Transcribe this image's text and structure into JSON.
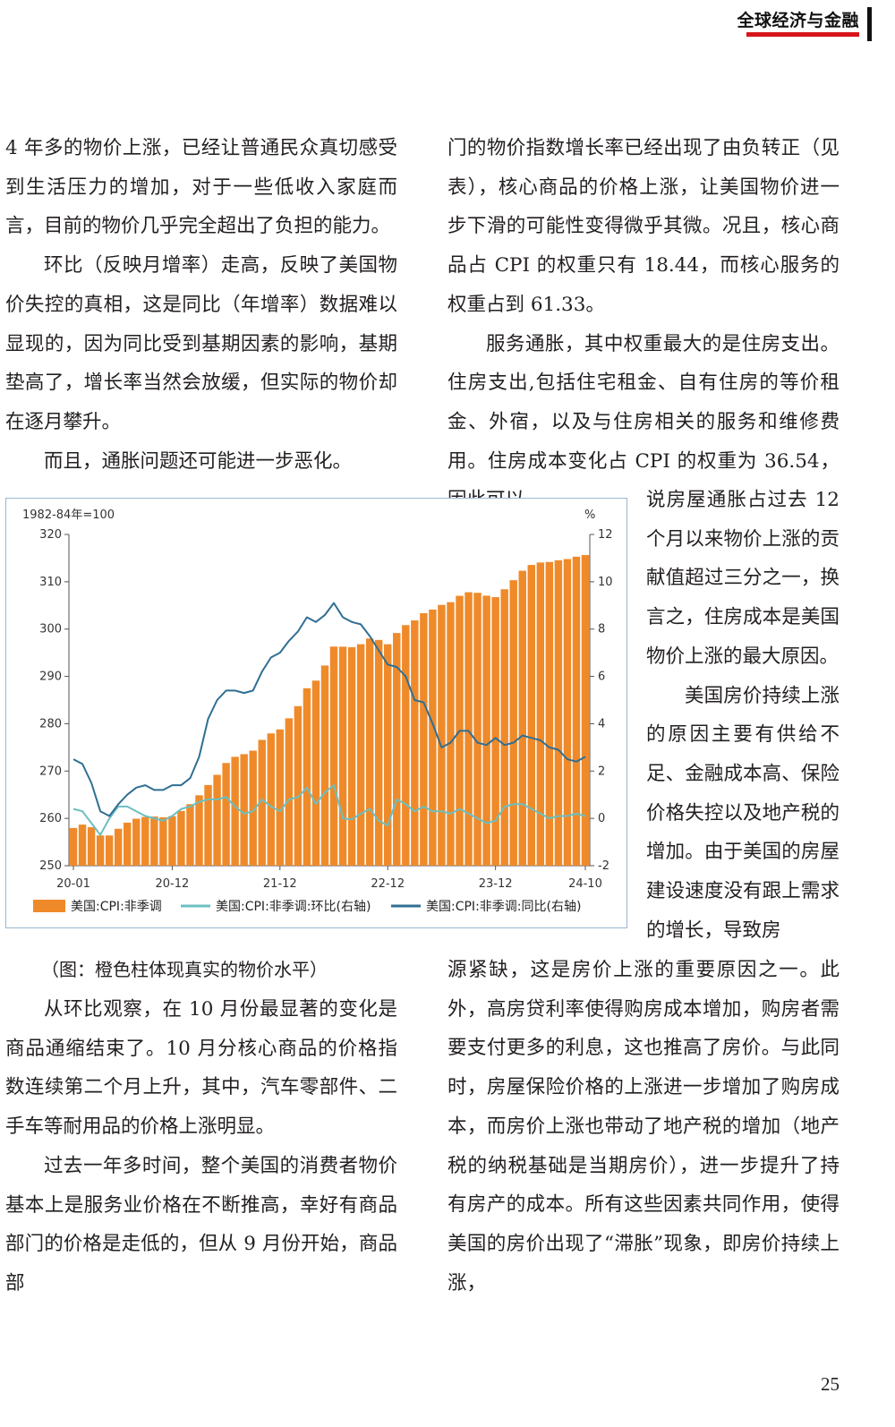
{
  "header": {
    "title": "全球经济与金融"
  },
  "columns": {
    "left_top": [
      {
        "text": "4 年多的物价上涨，已经让普通民众真切感受到生活压力的增加，对于一些低收入家庭而言，目前的物价几乎完全超出了负担的能力。",
        "indent": false
      },
      {
        "text": "环比（反映月增率）走高，反映了美国物价失控的真相，这是同比（年增率）数据难以显现的，因为同比受到基期因素的影响，基期垫高了，增长率当然会放缓，但实际的物价却在逐月攀升。",
        "indent": true
      },
      {
        "text": "而且，通胀问题还可能进一步恶化。",
        "indent": true
      }
    ],
    "right_top": [
      {
        "text": "门的物价指数增长率已经出现了由负转正（见表），核心商品的价格上涨，让美国物价进一步下滑的可能性变得微乎其微。况且，核心商品占 CPI 的权重只有 18.44，而核心服务的权重占到 61.33。",
        "indent": false
      },
      {
        "text": "服务通胀，其中权重最大的是住房支出。住房支出,包括住宅租金、自有住房的等价租金、外宿，以及与住房相关的服务和维修费用。住房成本变化占 CPI 的权重为 36.54，因此可以",
        "indent": true
      }
    ],
    "wrap": [
      {
        "text": "说房屋通胀占过去 12 个月以来物价上涨的贡献值超过三分之一，换言之，住房成本是美国物价上涨的最大原因。",
        "indent": false
      },
      {
        "text": "美国房价持续上涨的原因主要有供给不足、金融成本高、保险价格失控以及地产税的增加。由于美国的房屋建设速度没有跟上需求的增长，导致房",
        "indent": true
      }
    ],
    "left_bottom": [
      {
        "text": "从环比观察，在 10 月份最显著的变化是商品通缩结束了。10 月分核心商品的价格指数连续第二个月上升，其中，汽车零部件、二手车等耐用品的价格上涨明显。",
        "indent": true
      },
      {
        "text": "过去一年多时间，整个美国的消费者物价基本上是服务业价格在不断推高，幸好有商品部门的价格是走低的，但从 9 月份开始，商品部",
        "indent": true
      }
    ],
    "right_bottom": [
      {
        "text": "源紧缺，这是房价上涨的重要原因之一。此外，高房贷利率使得购房成本增加，购房者需要支付更多的利息，这也推高了房价。与此同时，房屋保险价格的上涨进一步增加了购房成本，而房价上涨也带动了地产税的增加（地产税的纳税基础是当期房价），进一步提升了持有房产的成本。所有这些因素共同作用，使得美国的房价出现了“滞胀”现象，即房价持续上涨，",
        "indent": false
      }
    ]
  },
  "caption": "（图：橙色柱体现真实的物价水平）",
  "page_number": "25",
  "chart_data": {
    "type": "bar",
    "left_unit_label": "1982-84年=100",
    "right_unit_label": "%",
    "x_tick_labels": [
      "20-01",
      "20-12",
      "21-12",
      "22-12",
      "23-12",
      "24-10"
    ],
    "x_tick_index": [
      0,
      11,
      23,
      35,
      47,
      57
    ],
    "left_axis": {
      "min": 250,
      "max": 320,
      "ticks": [
        250,
        260,
        270,
        280,
        290,
        300,
        310,
        320
      ]
    },
    "right_axis": {
      "min": -2,
      "max": 12,
      "ticks": [
        -2,
        0,
        2,
        4,
        6,
        8,
        10,
        12
      ]
    },
    "colors": {
      "bar": "#ef8a2a",
      "mom": "#6bbfc0",
      "yoy": "#2f6f93"
    },
    "series": [
      {
        "name": "美国:CPI:非季调",
        "kind": "bar",
        "axis": "left",
        "values": [
          257.97,
          258.68,
          258.12,
          256.39,
          256.39,
          257.8,
          259.1,
          259.92,
          260.28,
          260.39,
          260.23,
          260.47,
          261.58,
          263.01,
          264.88,
          267.05,
          269.2,
          271.7,
          273.0,
          273.57,
          274.31,
          276.59,
          277.95,
          278.8,
          281.15,
          283.72,
          287.5,
          289.11,
          292.3,
          296.31,
          296.28,
          296.17,
          296.81,
          298.01,
          297.71,
          296.8,
          299.17,
          300.84,
          301.84,
          303.36,
          304.13,
          305.11,
          305.69,
          307.03,
          307.79,
          307.67,
          307.05,
          306.75,
          308.42,
          310.33,
          312.33,
          313.55,
          314.07,
          314.18,
          314.54,
          314.8,
          315.3,
          315.66
        ],
        "categories_range": [
          "20-01",
          "24-10"
        ]
      },
      {
        "name": "美国:CPI:非季调:环比(右轴)",
        "kind": "line",
        "axis": "right",
        "values": [
          0.4,
          0.3,
          -0.2,
          -0.7,
          0.0,
          0.5,
          0.5,
          0.3,
          0.1,
          0.0,
          -0.1,
          0.1,
          0.4,
          0.5,
          0.7,
          0.8,
          0.8,
          0.9,
          0.5,
          0.2,
          0.3,
          0.8,
          0.5,
          0.3,
          0.8,
          0.9,
          1.3,
          0.6,
          1.1,
          1.4,
          0.0,
          -0.04,
          0.2,
          0.4,
          -0.1,
          -0.3,
          0.8,
          0.6,
          0.3,
          0.5,
          0.3,
          0.3,
          0.2,
          0.4,
          0.2,
          0.0,
          -0.2,
          -0.1,
          0.5,
          0.6,
          0.6,
          0.4,
          0.2,
          0.0,
          0.1,
          0.1,
          0.2,
          0.1
        ]
      },
      {
        "name": "美国:CPI:非季调:同比(右轴)",
        "kind": "line",
        "axis": "right",
        "values": [
          2.5,
          2.3,
          1.5,
          0.3,
          0.1,
          0.6,
          1.0,
          1.3,
          1.4,
          1.2,
          1.2,
          1.4,
          1.4,
          1.7,
          2.6,
          4.2,
          5.0,
          5.4,
          5.4,
          5.3,
          5.4,
          6.2,
          6.8,
          7.0,
          7.5,
          7.9,
          8.5,
          8.3,
          8.6,
          9.1,
          8.5,
          8.3,
          8.2,
          7.7,
          7.1,
          6.5,
          6.4,
          6.0,
          5.0,
          4.9,
          4.0,
          3.0,
          3.2,
          3.7,
          3.7,
          3.2,
          3.1,
          3.4,
          3.1,
          3.2,
          3.5,
          3.4,
          3.3,
          3.0,
          2.9,
          2.5,
          2.4,
          2.6
        ]
      }
    ]
  }
}
